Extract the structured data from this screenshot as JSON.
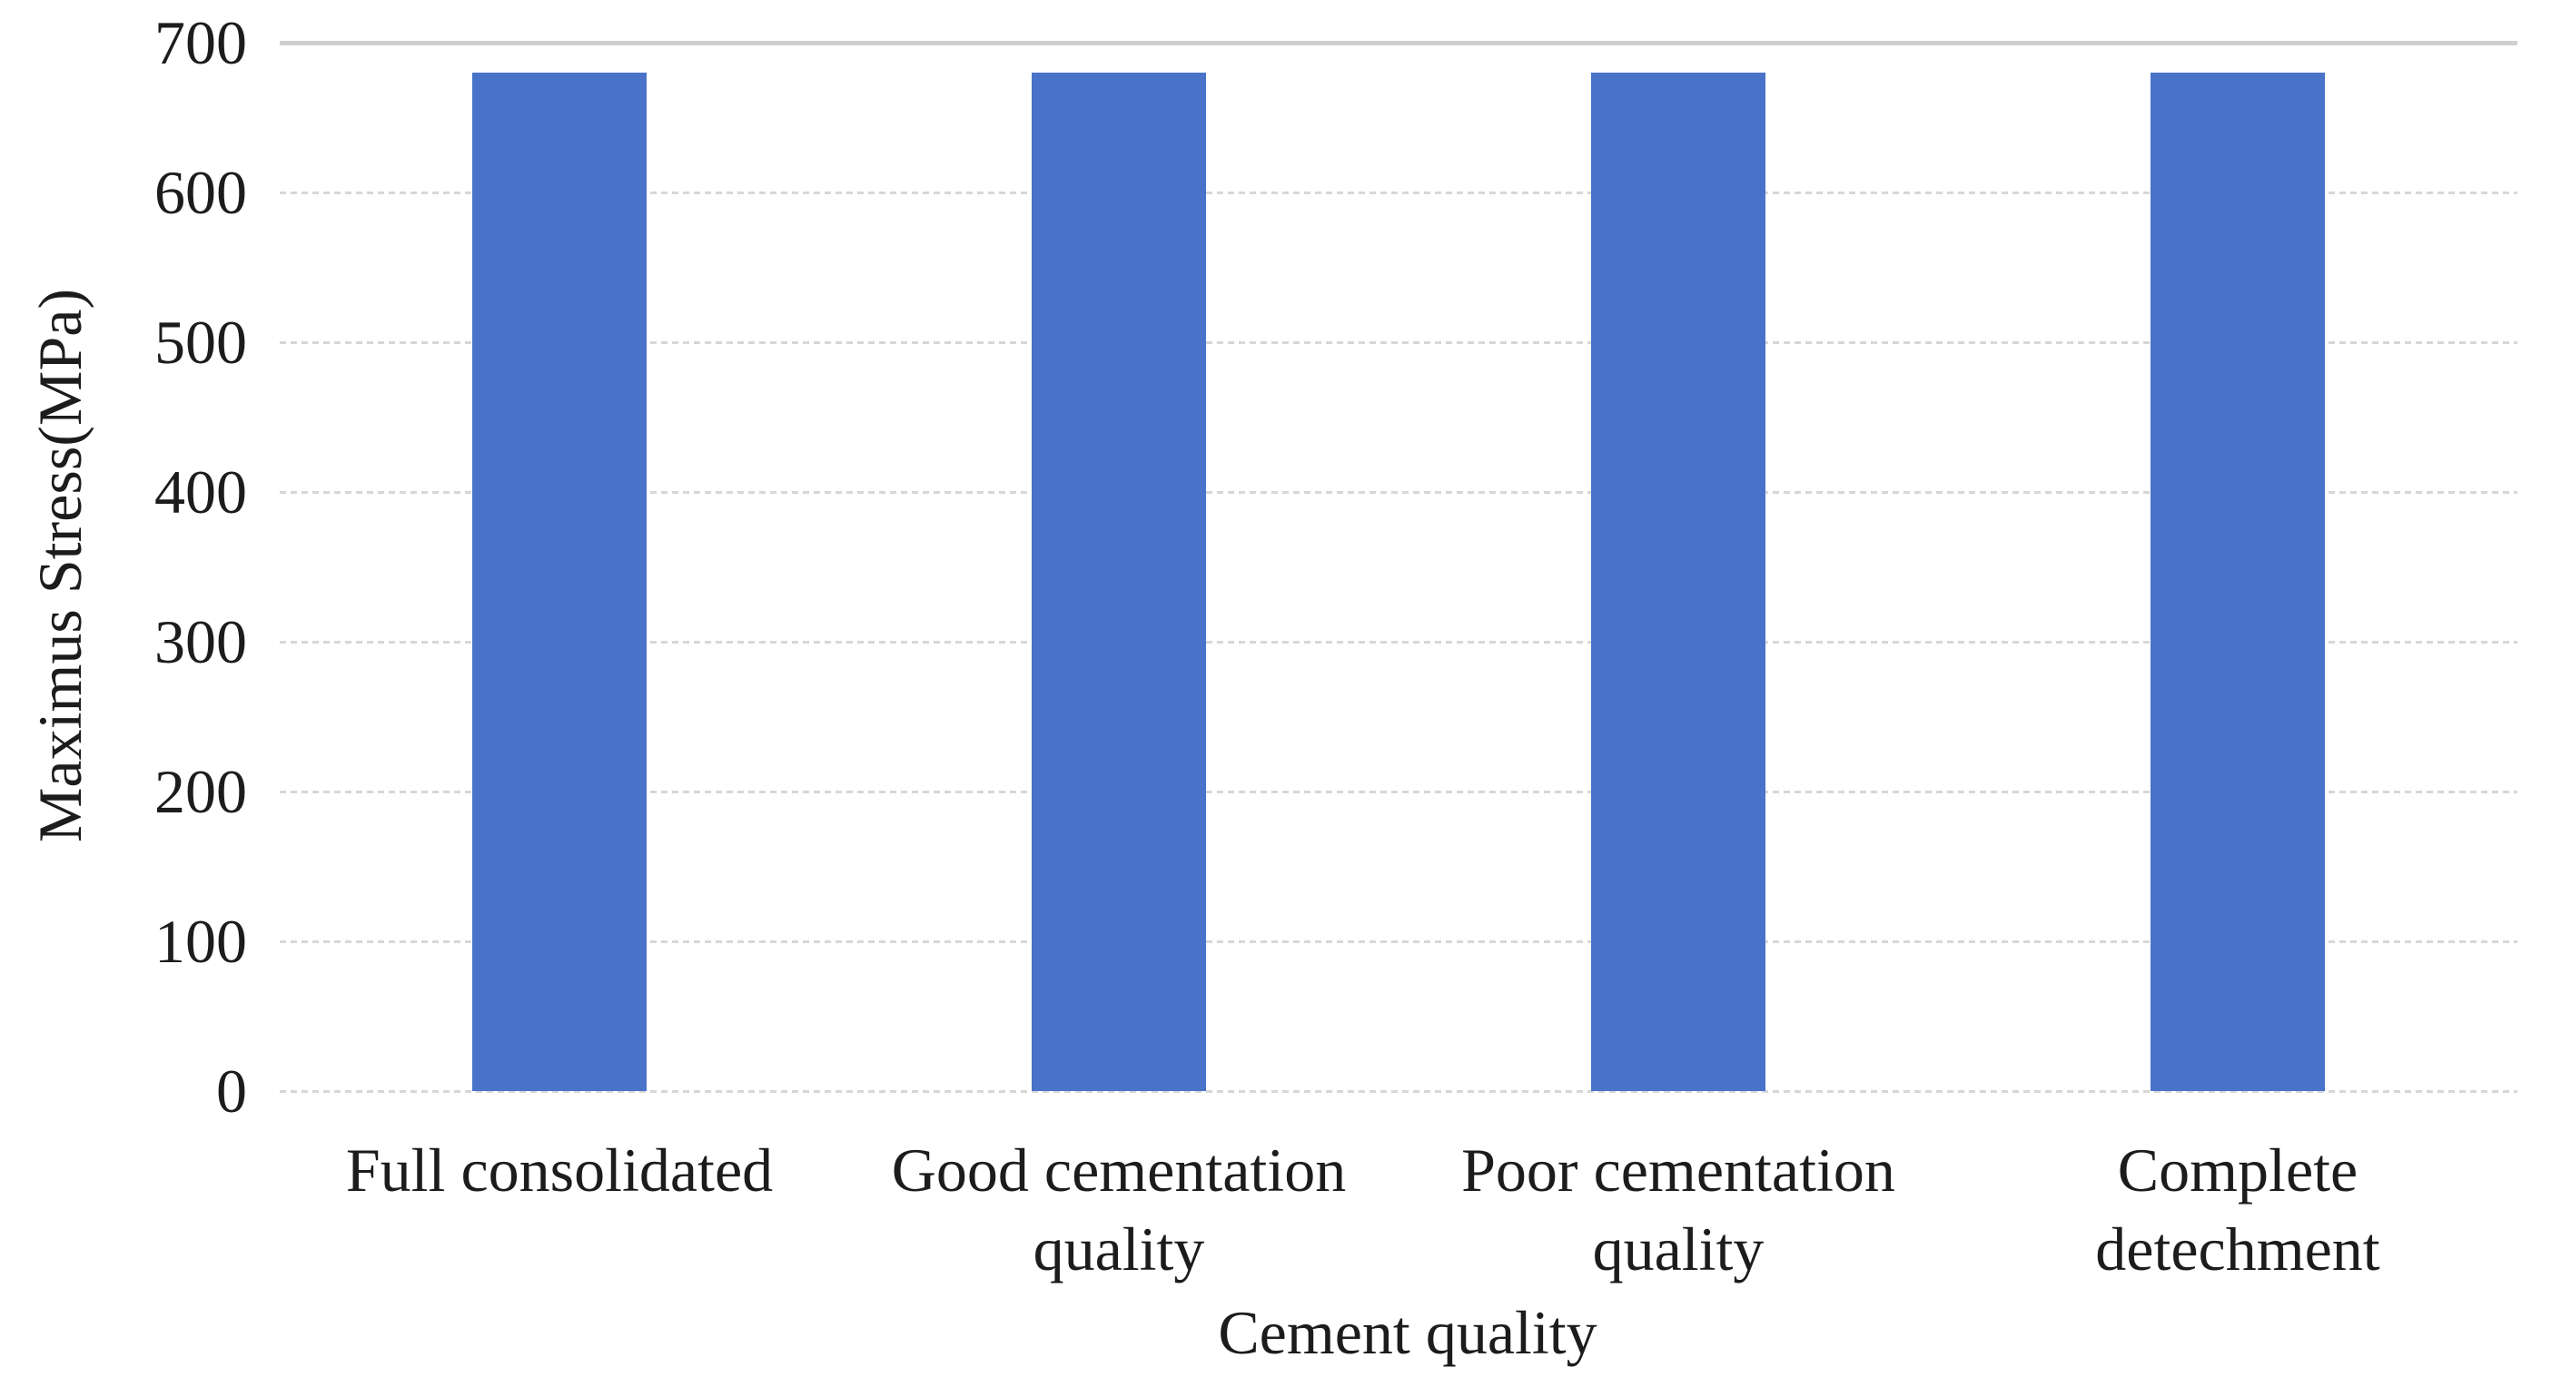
{
  "chart_data": {
    "type": "bar",
    "title": "",
    "xlabel": "Cement quality",
    "ylabel": "Maximus Stress(MPa)",
    "categories": [
      "Full consolidated",
      "Good cementation quality",
      "Poor cementation quality",
      "Complete detechment"
    ],
    "category_label_lines": [
      [
        "Full consolidated"
      ],
      [
        "Good cementation",
        "quality"
      ],
      [
        "Poor cementation",
        "quality"
      ],
      [
        "Complete",
        "detechment"
      ]
    ],
    "series": [
      {
        "name": "Maximus Stress",
        "values": [
          680,
          680,
          680,
          680
        ]
      }
    ],
    "ylim": [
      0,
      700
    ],
    "yticks": [
      0,
      100,
      200,
      300,
      400,
      500,
      600,
      700
    ],
    "grid": "horizontal, dashed light gray, top line solid",
    "legend_position": "none",
    "bar_color": "#4873C9",
    "gridline_color": "#D7D7D7",
    "top_gridline_color": "#CFCFCF",
    "text_color": "#1C1C1C",
    "background_color": "#FFFFFF"
  }
}
